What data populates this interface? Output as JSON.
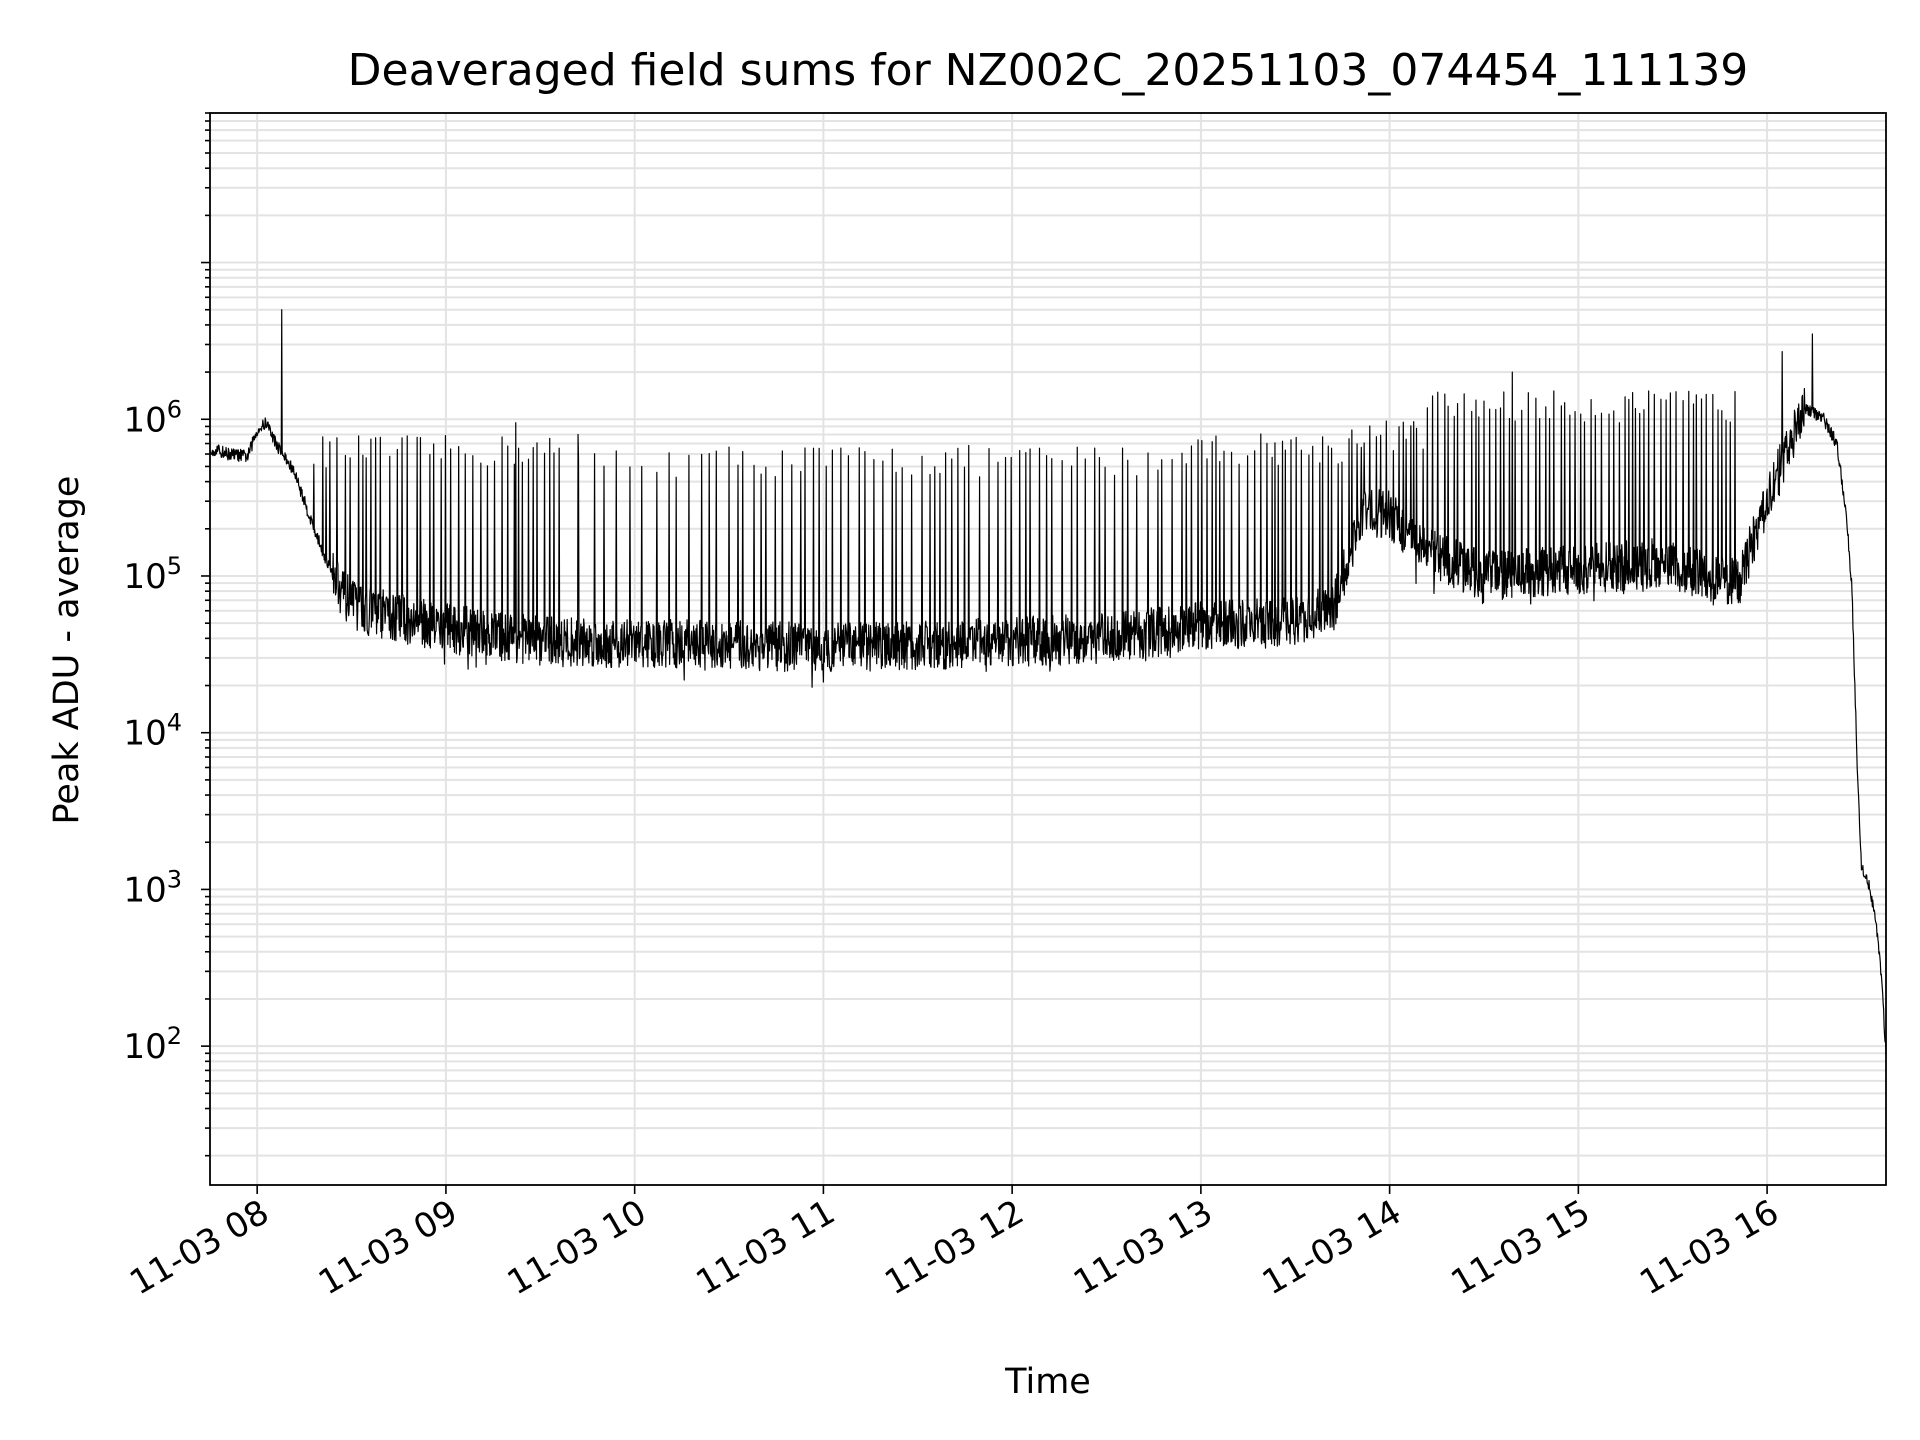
{
  "chart_data": {
    "type": "line",
    "title": "Deaveraged field sums for NZ002C_20251103_074454_111139",
    "xlabel": "Time",
    "ylabel": "Peak ADU - average",
    "y_scale": "log",
    "ylim": [
      13,
      90000000
    ],
    "xlim_hours": [
      7.75,
      16.63
    ],
    "grid": true,
    "x_tick_labels": [
      "11-03 08",
      "11-03 09",
      "11-03 10",
      "11-03 11",
      "11-03 12",
      "11-03 13",
      "11-03 14",
      "11-03 15",
      "11-03 16"
    ],
    "x_tick_hours": [
      8,
      9,
      10,
      11,
      12,
      13,
      14,
      15,
      16
    ],
    "y_ticks": [
      {
        "value": 100,
        "base": "10",
        "exp": "2"
      },
      {
        "value": 1000,
        "base": "10",
        "exp": "3"
      },
      {
        "value": 10000,
        "base": "10",
        "exp": "4"
      },
      {
        "value": 100000,
        "base": "10",
        "exp": "5"
      },
      {
        "value": 1000000,
        "base": "10",
        "exp": "6"
      }
    ],
    "series": [
      {
        "name": "deaveraged field sums",
        "color": "#000000",
        "baseline": [
          [
            7.75,
            650000
          ],
          [
            7.85,
            600000
          ],
          [
            7.95,
            580000
          ],
          [
            8.0,
            850000
          ],
          [
            8.05,
            950000
          ],
          [
            8.1,
            700000
          ],
          [
            8.2,
            450000
          ],
          [
            8.3,
            200000
          ],
          [
            8.4,
            100000
          ],
          [
            8.5,
            65000
          ],
          [
            8.7,
            55000
          ],
          [
            8.9,
            50000
          ],
          [
            9.2,
            42000
          ],
          [
            9.6,
            38000
          ],
          [
            10.0,
            37000
          ],
          [
            10.5,
            36000
          ],
          [
            11.0,
            35000
          ],
          [
            11.5,
            36000
          ],
          [
            12.0,
            38000
          ],
          [
            12.5,
            40000
          ],
          [
            13.0,
            48000
          ],
          [
            13.4,
            50000
          ],
          [
            13.7,
            60000
          ],
          [
            13.85,
            250000
          ],
          [
            14.0,
            250000
          ],
          [
            14.15,
            150000
          ],
          [
            14.5,
            100000
          ],
          [
            15.0,
            110000
          ],
          [
            15.4,
            120000
          ],
          [
            15.85,
            90000
          ],
          [
            16.0,
            300000
          ],
          [
            16.2,
            1200000
          ],
          [
            16.3,
            1000000
          ],
          [
            16.37,
            700000
          ],
          [
            16.42,
            250000
          ],
          [
            16.45,
            80000
          ],
          [
            16.48,
            5000
          ],
          [
            16.5,
            1400
          ],
          [
            16.53,
            1200
          ],
          [
            16.57,
            700
          ],
          [
            16.6,
            350
          ],
          [
            16.63,
            90
          ]
        ],
        "spike_regions": [
          {
            "start": 8.3,
            "end": 9.6,
            "spacing_h": 0.035,
            "peak": 750000
          },
          {
            "start": 9.6,
            "end": 10.5,
            "spacing_h": 0.07,
            "peak": 650000
          },
          {
            "start": 10.5,
            "end": 12.9,
            "spacing_h": 0.04,
            "peak": 650000
          },
          {
            "start": 12.9,
            "end": 13.8,
            "spacing_h": 0.03,
            "peak": 780000
          },
          {
            "start": 13.8,
            "end": 14.2,
            "spacing_h": 0.025,
            "peak": 950000
          },
          {
            "start": 14.2,
            "end": 15.85,
            "spacing_h": 0.028,
            "peak": 1450000
          }
        ],
        "notable_spikes": [
          [
            8.13,
            5000000
          ],
          [
            9.37,
            950000
          ],
          [
            9.7,
            800000
          ],
          [
            14.65,
            2000000
          ],
          [
            16.08,
            2700000
          ],
          [
            16.24,
            3500000
          ]
        ]
      }
    ]
  }
}
